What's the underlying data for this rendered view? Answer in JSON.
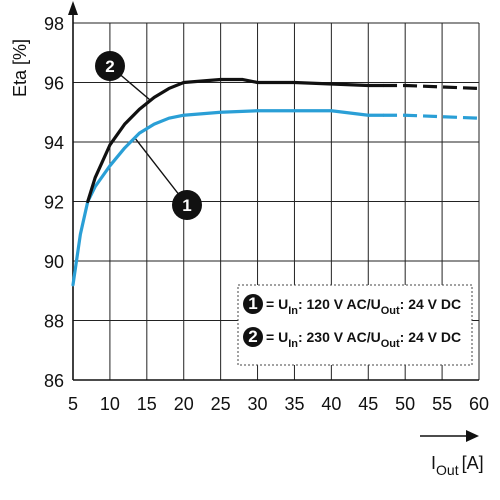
{
  "chart_data": {
    "type": "line",
    "xlabel_main": "I",
    "xlabel_sub": "Out",
    "xlabel_unit": "[A]",
    "ylabel": "Eta [%]",
    "xlim": [
      5,
      60
    ],
    "ylim": [
      86,
      98
    ],
    "x_ticks": [
      "5",
      "10",
      "15",
      "20",
      "25",
      "30",
      "35",
      "40",
      "45",
      "50",
      "55",
      "60"
    ],
    "y_ticks": [
      "86",
      "88",
      "90",
      "92",
      "94",
      "96",
      "98"
    ],
    "grid": true,
    "dashed_from_x": 47,
    "series": [
      {
        "badge": "1",
        "color": "#2a9fd6",
        "x": [
          5,
          6,
          7,
          8,
          10,
          12,
          14,
          16,
          18,
          20,
          25,
          30,
          35,
          40,
          45,
          47,
          50,
          55,
          60
        ],
        "y": [
          89.2,
          90.9,
          92.0,
          92.5,
          93.2,
          93.8,
          94.3,
          94.6,
          94.8,
          94.9,
          95.0,
          95.05,
          95.05,
          95.05,
          94.9,
          94.9,
          94.9,
          94.85,
          94.8
        ]
      },
      {
        "badge": "2",
        "color": "#111111",
        "x": [
          7,
          8,
          10,
          12,
          14,
          16,
          18,
          20,
          25,
          28,
          30,
          35,
          40,
          45,
          47,
          50,
          55,
          60
        ],
        "y": [
          92.0,
          92.8,
          93.9,
          94.6,
          95.1,
          95.5,
          95.8,
          96.0,
          96.1,
          96.1,
          96.0,
          96.0,
          95.95,
          95.9,
          95.9,
          95.9,
          95.85,
          95.8
        ]
      }
    ],
    "legend": {
      "placement": "bottom-right",
      "entries": [
        {
          "badge": "1",
          "parts": [
            {
              "t": "= U"
            },
            {
              "t": "In",
              "sub": true
            },
            {
              "t": ": 120 V AC/U"
            },
            {
              "t": "Out",
              "sub": true
            },
            {
              "t": ": 24 V DC"
            }
          ]
        },
        {
          "badge": "2",
          "parts": [
            {
              "t": "= U"
            },
            {
              "t": "In",
              "sub": true
            },
            {
              "t": ": 230 V AC/U"
            },
            {
              "t": "Out",
              "sub": true
            },
            {
              "t": ": 24 V DC"
            }
          ]
        }
      ]
    },
    "callouts": [
      {
        "badge": "1",
        "point": [
          13.5,
          94.1
        ]
      },
      {
        "badge": "2",
        "point": [
          15.5,
          95.4
        ]
      }
    ]
  }
}
